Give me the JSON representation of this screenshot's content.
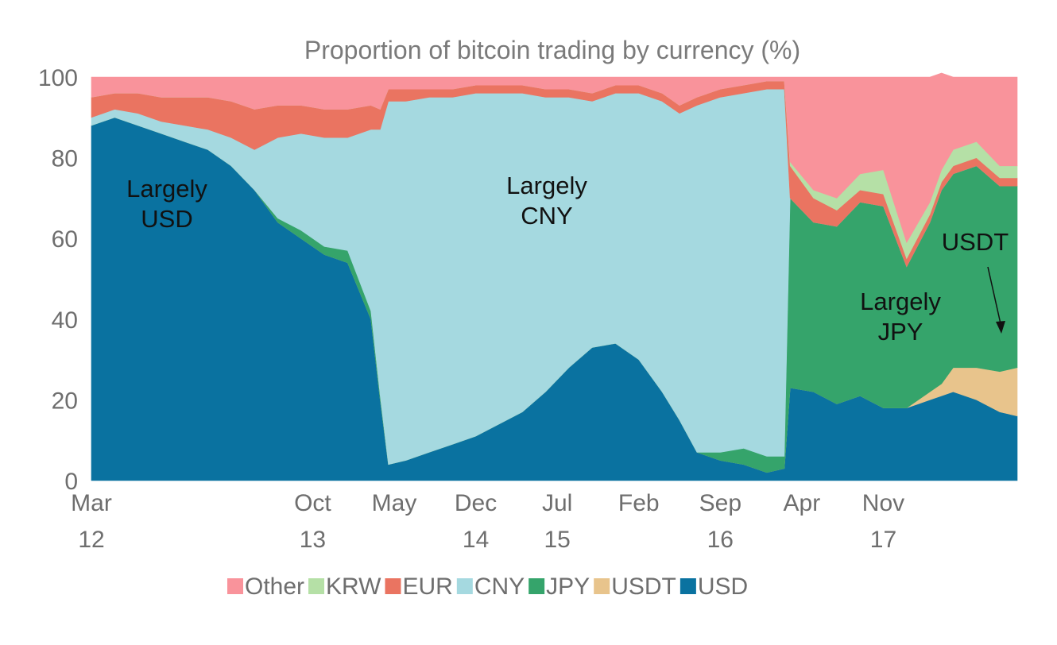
{
  "chart_data": {
    "type": "area",
    "stacked": true,
    "title": "Proportion of bitcoin trading by currency (%)",
    "xlabel": "",
    "ylabel": "",
    "ylim": [
      0,
      100
    ],
    "yticks": [
      "0",
      "20",
      "40",
      "60",
      "80",
      "100"
    ],
    "xticks": [
      {
        "month": "Mar",
        "year": "12",
        "t": 0
      },
      {
        "month": "Oct",
        "year": "13",
        "t": 19
      },
      {
        "month": "May",
        "year": "",
        "t": 26
      },
      {
        "month": "Dec",
        "year": "14",
        "t": 33
      },
      {
        "month": "Jul",
        "year": "15",
        "t": 40
      },
      {
        "month": "Feb",
        "year": "",
        "t": 47
      },
      {
        "month": "Sep",
        "year": "16",
        "t": 54
      },
      {
        "month": "Apr",
        "year": "",
        "t": 61
      },
      {
        "month": "Nov",
        "year": "17",
        "t": 68
      }
    ],
    "x": [
      0,
      2,
      4,
      6,
      8,
      10,
      12,
      14,
      16,
      18,
      20,
      22,
      24,
      24.8,
      25.5,
      27,
      29,
      31,
      33,
      35,
      37,
      39,
      41,
      43,
      45,
      47,
      49,
      50.5,
      52,
      54,
      56,
      58,
      59.5,
      60,
      62,
      64,
      66,
      68,
      70,
      72,
      73,
      74,
      76,
      78,
      79.5
    ],
    "series": [
      {
        "name": "USD",
        "color": "#0a72a0",
        "values": [
          88,
          90,
          88,
          86,
          84,
          82,
          78,
          72,
          64,
          60,
          56,
          54,
          40,
          20,
          4,
          5,
          7,
          9,
          11,
          14,
          17,
          22,
          28,
          33,
          34,
          30,
          22,
          15,
          7,
          5,
          4,
          2,
          3,
          23,
          22,
          19,
          21,
          18,
          18,
          20,
          21,
          22,
          20,
          17,
          16
        ]
      },
      {
        "name": "USDT",
        "color": "#e8c48c",
        "values": [
          0,
          0,
          0,
          0,
          0,
          0,
          0,
          0,
          0,
          0,
          0,
          0,
          0,
          0,
          0,
          0,
          0,
          0,
          0,
          0,
          0,
          0,
          0,
          0,
          0,
          0,
          0,
          0,
          0,
          0,
          0,
          0,
          0,
          0,
          0,
          0,
          0,
          0,
          0,
          2,
          3,
          6,
          8,
          10,
          12
        ]
      },
      {
        "name": "JPY",
        "color": "#35a46b",
        "values": [
          0,
          0,
          0,
          0,
          0,
          0,
          0,
          0,
          1,
          2,
          2,
          3,
          2,
          1,
          0,
          0,
          0,
          0,
          0,
          0,
          0,
          0,
          0,
          0,
          0,
          0,
          0,
          0,
          0,
          2,
          4,
          4,
          3,
          47,
          42,
          44,
          48,
          50,
          35,
          42,
          48,
          48,
          50,
          46,
          45
        ]
      },
      {
        "name": "CNY",
        "color": "#a5d9e0",
        "values": [
          2,
          2,
          3,
          3,
          4,
          5,
          7,
          10,
          20,
          24,
          27,
          28,
          45,
          66,
          90,
          89,
          88,
          86,
          85,
          82,
          79,
          73,
          67,
          61,
          62,
          66,
          72,
          76,
          86,
          88,
          88,
          91,
          91,
          0,
          0,
          0,
          0,
          0,
          0,
          0,
          0,
          0,
          0,
          0,
          0
        ]
      },
      {
        "name": "EUR",
        "color": "#ea7461",
        "values": [
          5,
          4,
          5,
          6,
          7,
          8,
          9,
          10,
          8,
          7,
          7,
          7,
          6,
          5,
          3,
          3,
          2,
          2,
          2,
          2,
          2,
          2,
          2,
          2,
          2,
          2,
          2,
          2,
          2,
          2,
          2,
          2,
          2,
          8,
          6,
          4,
          3,
          3,
          2,
          2,
          2,
          2,
          2,
          2,
          2
        ]
      },
      {
        "name": "KRW",
        "color": "#b5e0a6",
        "values": [
          0,
          0,
          0,
          0,
          0,
          0,
          0,
          0,
          0,
          0,
          0,
          0,
          0,
          0,
          0,
          0,
          0,
          0,
          0,
          0,
          0,
          0,
          0,
          0,
          0,
          0,
          0,
          0,
          0,
          0,
          0,
          0,
          0,
          1,
          2,
          3,
          4,
          6,
          4,
          3,
          3,
          4,
          4,
          3,
          3
        ]
      },
      {
        "name": "Other",
        "color": "#f9939b",
        "values": [
          5,
          4,
          4,
          5,
          5,
          5,
          6,
          8,
          7,
          7,
          8,
          8,
          7,
          8,
          3,
          3,
          3,
          3,
          2,
          2,
          2,
          3,
          3,
          4,
          2,
          2,
          4,
          7,
          5,
          3,
          2,
          1,
          1,
          21,
          28,
          30,
          24,
          23,
          41,
          31,
          24,
          18,
          16,
          22,
          22
        ]
      }
    ],
    "annotations": [
      {
        "lines": [
          "Largely",
          "USD"
        ]
      },
      {
        "lines": [
          "Largely",
          "CNY"
        ]
      },
      {
        "lines": [
          "Largely",
          "JPY"
        ]
      },
      {
        "lines": [
          "USDT"
        ]
      }
    ],
    "legend": {
      "placement": "bottom",
      "items": [
        {
          "name": "Other",
          "color": "#f9939b"
        },
        {
          "name": "KRW",
          "color": "#b5e0a6"
        },
        {
          "name": "EUR",
          "color": "#ea7461"
        },
        {
          "name": "CNY",
          "color": "#a5d9e0"
        },
        {
          "name": "JPY",
          "color": "#35a46b"
        },
        {
          "name": "USDT",
          "color": "#e8c48c"
        },
        {
          "name": "USD",
          "color": "#0a72a0"
        }
      ]
    },
    "grid": false
  }
}
